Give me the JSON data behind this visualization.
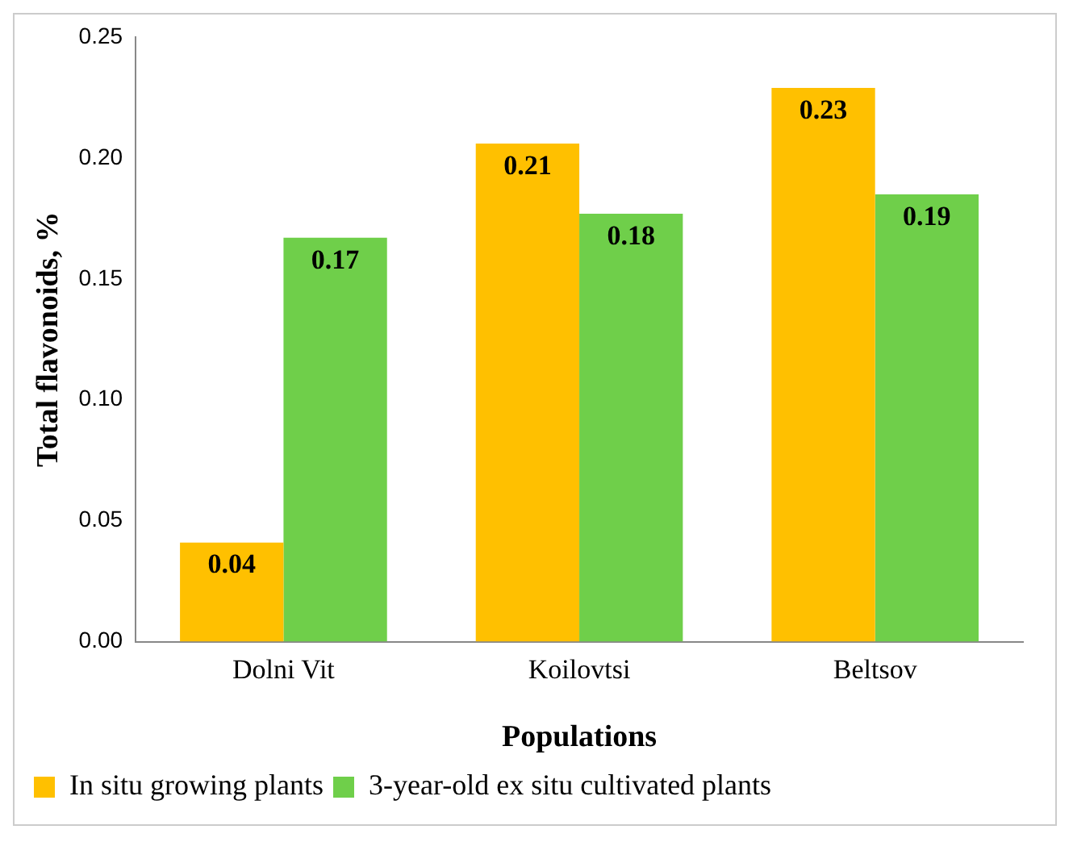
{
  "chart_data": {
    "type": "bar",
    "xlabel": "Populations",
    "ylabel": "Total flavonoids, %",
    "categories": [
      "Dolni Vit",
      "Koilovtsi",
      "Beltsov"
    ],
    "series": [
      {
        "name": "In situ growing plants",
        "color": "#ffc000",
        "values": [
          0.041,
          0.206,
          0.229
        ],
        "value_labels": [
          "0.04",
          "0.21",
          "0.23"
        ]
      },
      {
        "name": "3-year-old ex situ cultivated plants",
        "color": "#6fcf4a",
        "values": [
          0.167,
          0.177,
          0.185
        ],
        "value_labels": [
          "0.17",
          "0.18",
          "0.19"
        ]
      }
    ],
    "ylim": [
      0,
      0.25
    ],
    "yticks": [
      {
        "value": 0,
        "label": "0.00"
      },
      {
        "value": 0.05,
        "label": "0.05"
      },
      {
        "value": 0.1,
        "label": "0.10"
      },
      {
        "value": 0.15,
        "label": "0.15"
      },
      {
        "value": 0.2,
        "label": "0.20"
      },
      {
        "value": 0.25,
        "label": "0.25"
      }
    ],
    "grid": false,
    "legend": "bottom left"
  }
}
